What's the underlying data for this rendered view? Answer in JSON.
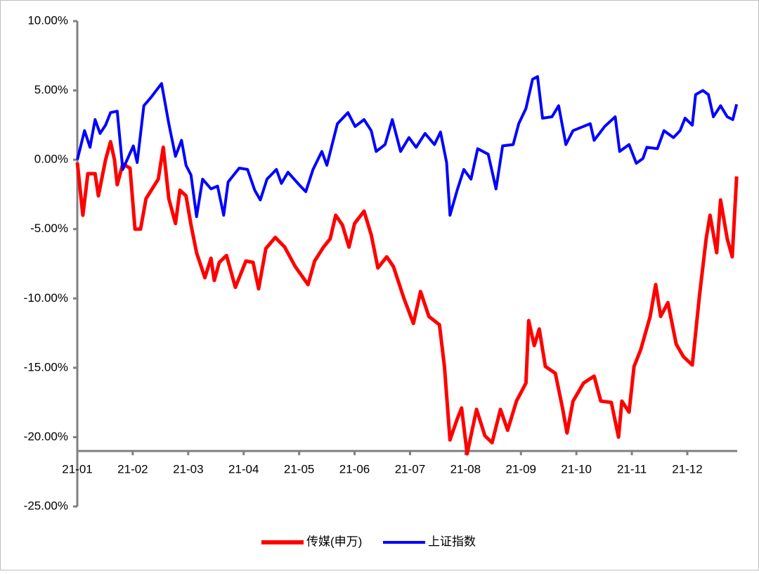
{
  "chart_data": {
    "type": "line",
    "ylim": [
      -25,
      10
    ],
    "yticks": [
      {
        "value": 10,
        "label": "10.00%"
      },
      {
        "value": 5,
        "label": "5.00%"
      },
      {
        "value": 0,
        "label": "0.00%"
      },
      {
        "value": -5,
        "label": "-5.00%"
      },
      {
        "value": -10,
        "label": "-10.00%"
      },
      {
        "value": -15,
        "label": "-15.00%"
      },
      {
        "value": -20,
        "label": "-20.00%"
      },
      {
        "value": -25,
        "label": "-25.00%"
      }
    ],
    "xlim": [
      0,
      11.9
    ],
    "xticks": [
      {
        "value": 0,
        "label": "21-01"
      },
      {
        "value": 1,
        "label": "21-02"
      },
      {
        "value": 2,
        "label": "21-03"
      },
      {
        "value": 3,
        "label": "21-04"
      },
      {
        "value": 4,
        "label": "21-05"
      },
      {
        "value": 5,
        "label": "21-06"
      },
      {
        "value": 6,
        "label": "21-07"
      },
      {
        "value": 7,
        "label": "21-08"
      },
      {
        "value": 8,
        "label": "21-09"
      },
      {
        "value": 9,
        "label": "21-10"
      },
      {
        "value": 10,
        "label": "21-11"
      },
      {
        "value": 11,
        "label": "21-12"
      }
    ],
    "x_axis_crossing": -21,
    "legend": "bottom",
    "series": [
      {
        "name": "传媒(申万)",
        "color": "#ff0000",
        "x": [
          0,
          0.1,
          0.19,
          0.32,
          0.38,
          0.51,
          0.6,
          0.67,
          0.72,
          0.82,
          0.95,
          1.04,
          1.14,
          1.24,
          1.46,
          1.55,
          1.65,
          1.77,
          1.85,
          1.96,
          2.05,
          2.15,
          2.3,
          2.41,
          2.47,
          2.56,
          2.69,
          2.85,
          3.04,
          3.17,
          3.27,
          3.4,
          3.57,
          3.74,
          3.93,
          4.16,
          4.28,
          4.44,
          4.56,
          4.66,
          4.78,
          4.9,
          5.0,
          5.17,
          5.3,
          5.42,
          5.58,
          5.7,
          5.89,
          6.06,
          6.19,
          6.34,
          6.53,
          6.62,
          6.72,
          6.85,
          6.93,
          7.03,
          7.2,
          7.35,
          7.48,
          7.63,
          7.76,
          7.92,
          8.09,
          8.14,
          8.24,
          8.33,
          8.44,
          8.62,
          8.75,
          8.83,
          8.94,
          9.13,
          9.32,
          9.44,
          9.63,
          9.76,
          9.82,
          9.95,
          10.04,
          10.16,
          10.33,
          10.43,
          10.52,
          10.65,
          10.8,
          10.93,
          11.09,
          11.22,
          11.34,
          11.41,
          11.53,
          11.6,
          11.72,
          11.81,
          11.89
        ],
        "values": [
          -0.2,
          -4,
          -1,
          -1,
          -2.6,
          0,
          1.3,
          0,
          -1.8,
          -0.3,
          -0.6,
          -5,
          -5,
          -2.8,
          -1.4,
          0.9,
          -2.8,
          -4.6,
          -2.2,
          -2.6,
          -4.7,
          -6.7,
          -8.5,
          -7.1,
          -8.7,
          -7.4,
          -6.9,
          -9.2,
          -7.3,
          -7.4,
          -9.3,
          -6.4,
          -5.6,
          -6.3,
          -7.7,
          -9,
          -7.3,
          -6.3,
          -5.7,
          -4,
          -4.7,
          -6.3,
          -4.6,
          -3.7,
          -5.4,
          -7.8,
          -7,
          -7.7,
          -10,
          -11.8,
          -9.5,
          -11.3,
          -11.9,
          -14.9,
          -20.2,
          -18.7,
          -17.9,
          -21.2,
          -18,
          -19.9,
          -20.4,
          -18,
          -19.5,
          -17.4,
          -16.1,
          -11.6,
          -13.4,
          -12.2,
          -14.9,
          -15.4,
          -17.9,
          -19.7,
          -17.4,
          -16.1,
          -15.6,
          -17.4,
          -17.5,
          -20,
          -17.4,
          -18.2,
          -14.9,
          -13.7,
          -11.3,
          -9,
          -11.3,
          -10.3,
          -13.3,
          -14.2,
          -14.8,
          -9.8,
          -5.7,
          -4,
          -6.7,
          -2.9,
          -5.7,
          -7,
          -1.2
        ]
      },
      {
        "name": "上证指数",
        "color": "#0000ff",
        "x": [
          0,
          0.13,
          0.23,
          0.32,
          0.41,
          0.51,
          0.6,
          0.72,
          0.82,
          1.01,
          1.08,
          1.2,
          1.33,
          1.52,
          1.65,
          1.77,
          1.88,
          1.96,
          2.05,
          2.15,
          2.26,
          2.41,
          2.53,
          2.64,
          2.72,
          2.92,
          3.07,
          3.2,
          3.3,
          3.42,
          3.59,
          3.68,
          3.8,
          4.0,
          4.12,
          4.25,
          4.41,
          4.5,
          4.69,
          4.88,
          5.01,
          5.17,
          5.3,
          5.39,
          5.55,
          5.68,
          5.83,
          5.98,
          6.11,
          6.27,
          6.44,
          6.55,
          6.66,
          6.72,
          6.85,
          6.97,
          7.1,
          7.22,
          7.41,
          7.55,
          7.67,
          7.86,
          7.96,
          8.09,
          8.21,
          8.3,
          8.39,
          8.56,
          8.68,
          8.81,
          8.94,
          9.25,
          9.32,
          9.51,
          9.7,
          9.78,
          9.95,
          10.08,
          10.2,
          10.27,
          10.46,
          10.58,
          10.75,
          10.87,
          10.96,
          11.09,
          11.15,
          11.28,
          11.38,
          11.47,
          11.6,
          11.72,
          11.82,
          11.89
        ],
        "values": [
          0,
          2.1,
          0.9,
          2.9,
          1.9,
          2.5,
          3.4,
          3.5,
          -0.7,
          1,
          -0.2,
          3.9,
          4.5,
          5.5,
          2.6,
          0.25,
          1.4,
          -0.4,
          -1.1,
          -4.1,
          -1.4,
          -2.1,
          -1.9,
          -4,
          -1.6,
          -0.6,
          -0.7,
          -2.2,
          -2.9,
          -1.4,
          -0.7,
          -1.7,
          -0.9,
          -1.8,
          -2.3,
          -0.7,
          0.6,
          -0.4,
          2.6,
          3.4,
          2.4,
          2.9,
          2.1,
          0.6,
          1.1,
          2.9,
          0.6,
          1.6,
          0.9,
          1.9,
          1.1,
          2,
          -0.2,
          -4,
          -2.2,
          -0.7,
          -1.4,
          0.8,
          0.4,
          -2.1,
          1,
          1.1,
          2.6,
          3.7,
          5.8,
          6,
          3,
          3.1,
          3.9,
          1.1,
          2.1,
          2.6,
          1.4,
          2.4,
          3.1,
          0.6,
          1.1,
          -0.25,
          0.1,
          0.9,
          0.8,
          2.1,
          1.6,
          2.1,
          3,
          2.5,
          4.7,
          5,
          4.7,
          3.1,
          3.9,
          3.1,
          2.9,
          4
        ]
      }
    ]
  }
}
